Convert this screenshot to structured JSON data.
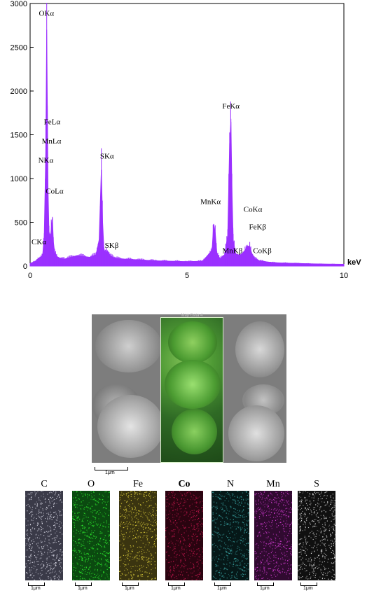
{
  "chart_data": {
    "type": "line",
    "title": "",
    "xlabel": "keV",
    "ylabel": "",
    "xlim": [
      0,
      10
    ],
    "ylim": [
      0,
      3000
    ],
    "x_ticks": [
      0,
      5,
      10
    ],
    "y_ticks": [
      0,
      500,
      1000,
      1500,
      2000,
      2500,
      3000
    ],
    "color": "#9b30ff",
    "grid": false,
    "series": [
      {
        "x": [
          0.0,
          0.15,
          0.28,
          0.4,
          0.45,
          0.5,
          0.53,
          0.55,
          0.57,
          0.6,
          0.64,
          0.68,
          0.71,
          0.74,
          0.78,
          0.85,
          0.95,
          1.1,
          1.3,
          1.5,
          1.7,
          1.9,
          2.1,
          2.2,
          2.27,
          2.31,
          2.35,
          2.4,
          2.45,
          2.55,
          2.7,
          3.0,
          3.5,
          4.0,
          4.5,
          5.0,
          5.5,
          5.8,
          5.85,
          5.9,
          5.95,
          6.05,
          6.2,
          6.3,
          6.36,
          6.4,
          6.43,
          6.47,
          6.55,
          6.7,
          6.85,
          6.93,
          7.0,
          7.06,
          7.15,
          7.3,
          7.5,
          7.7,
          8.0,
          8.5,
          9.0,
          9.5,
          10.0
        ],
        "y": [
          30,
          50,
          90,
          120,
          350,
          1300,
          2700,
          1800,
          900,
          400,
          300,
          450,
          550,
          280,
          160,
          110,
          90,
          80,
          100,
          120,
          110,
          100,
          130,
          300,
          1100,
          500,
          200,
          150,
          180,
          120,
          90,
          80,
          70,
          60,
          55,
          50,
          55,
          180,
          480,
          380,
          150,
          80,
          130,
          350,
          1400,
          1650,
          900,
          300,
          140,
          120,
          180,
          230,
          220,
          150,
          90,
          60,
          50,
          40,
          35,
          30,
          25,
          22,
          20
        ]
      }
    ],
    "annotations": [
      {
        "text": "OKα",
        "x": 0.52,
        "y": 2860
      },
      {
        "text": "FeLα",
        "x": 0.7,
        "y": 1620
      },
      {
        "text": "MnLα",
        "x": 0.68,
        "y": 1400
      },
      {
        "text": "NKα",
        "x": 0.5,
        "y": 1180
      },
      {
        "text": "CoLα",
        "x": 0.78,
        "y": 830
      },
      {
        "text": "CKα",
        "x": 0.28,
        "y": 250
      },
      {
        "text": "SKα",
        "x": 2.45,
        "y": 1230
      },
      {
        "text": "SKβ",
        "x": 2.6,
        "y": 210
      },
      {
        "text": "MnKα",
        "x": 5.75,
        "y": 710
      },
      {
        "text": "FeKα",
        "x": 6.4,
        "y": 1800
      },
      {
        "text": "MnKβ",
        "x": 6.45,
        "y": 150
      },
      {
        "text": "CoKα",
        "x": 7.1,
        "y": 620
      },
      {
        "text": "FeKβ",
        "x": 7.25,
        "y": 420
      },
      {
        "text": "CoKβ",
        "x": 7.4,
        "y": 150
      }
    ]
  },
  "sem": {
    "overlay_label": "Map Data 4",
    "scale_label": "1μm"
  },
  "maps": [
    {
      "element": "C",
      "color": "#e6e6f2",
      "bg": "#3a3a48",
      "bold": false
    },
    {
      "element": "O",
      "color": "#33ff33",
      "bg": "#0b4a10",
      "bold": false
    },
    {
      "element": "Fe",
      "color": "#f0e040",
      "bg": "#3a3410",
      "bold": false
    },
    {
      "element": "Co",
      "color": "#c81850",
      "bg": "#2a0410",
      "bold": true
    },
    {
      "element": "N",
      "color": "#3fb0b0",
      "bg": "#061818",
      "bold": false
    },
    {
      "element": "Mn",
      "color": "#e040e0",
      "bg": "#300a30",
      "bold": false
    },
    {
      "element": "S",
      "color": "#f0f0f0",
      "bg": "#101010",
      "bold": false
    }
  ],
  "map_scale_label": "1μm"
}
